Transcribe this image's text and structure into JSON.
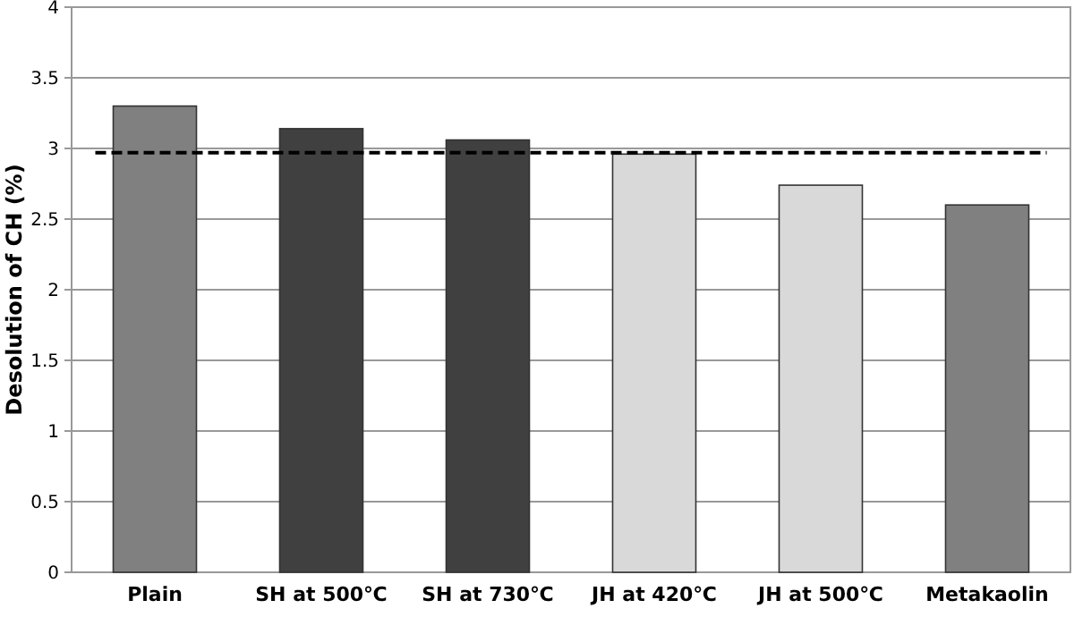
{
  "chart_data": {
    "type": "bar",
    "ylabel": "Desolution of CH (%)",
    "categories": [
      "Plain",
      "SH at 500℃",
      "SH at 730℃",
      "JH at 420℃",
      "JH at 500℃",
      "Metakaolin"
    ],
    "values": [
      3.3,
      3.14,
      3.06,
      2.96,
      2.74,
      2.6
    ],
    "colors": [
      "#808080",
      "#404040",
      "#404040",
      "#d9d9d9",
      "#d9d9d9",
      "#808080"
    ],
    "ylim": [
      0,
      4
    ],
    "yticks": [
      0,
      0.5,
      1,
      1.5,
      2,
      2.5,
      3,
      3.5,
      4
    ],
    "grid": "y",
    "ref_lines": [
      {
        "axis": "y",
        "value": 2.97,
        "color": "#000000",
        "line_style": "dashed"
      }
    ]
  }
}
